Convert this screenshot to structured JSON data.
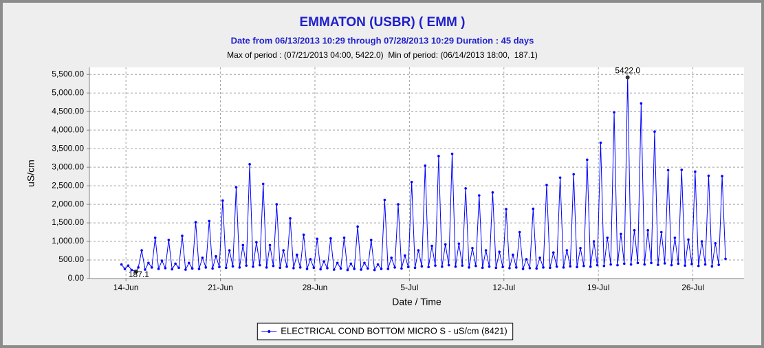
{
  "chart_data": {
    "type": "line",
    "title": "EMMATON (USBR) ( EMM )",
    "subtitle": "Date from 06/13/2013 10:29 through 07/28/2013 10:29 Duration : 45 days",
    "period_note": "Max of period : (07/21/2013 04:00, 5422.0)  Min of period: (06/14/2013 18:00,  187.1)",
    "xlabel": "Date / Time",
    "ylabel": "uS/cm",
    "xlim": [
      "06/11/2013 07:00",
      "07/29/2013 19:00"
    ],
    "ylim": [
      0,
      5690
    ],
    "xticks": [
      {
        "value": "06/14/2013 00:00",
        "label": "14-Jun"
      },
      {
        "value": "06/21/2013 00:00",
        "label": "21-Jun"
      },
      {
        "value": "06/28/2013 00:00",
        "label": "28-Jun"
      },
      {
        "value": "07/05/2013 00:00",
        "label": "5-Jul"
      },
      {
        "value": "07/12/2013 00:00",
        "label": "12-Jul"
      },
      {
        "value": "07/19/2013 00:00",
        "label": "19-Jul"
      },
      {
        "value": "07/26/2013 00:00",
        "label": "26-Jul"
      }
    ],
    "yticks": [
      {
        "value": 0,
        "label": "0.00"
      },
      {
        "value": 500,
        "label": "500.00"
      },
      {
        "value": 1000,
        "label": "1,000.00"
      },
      {
        "value": 1500,
        "label": "1,500.00"
      },
      {
        "value": 2000,
        "label": "2,000.00"
      },
      {
        "value": 2500,
        "label": "2,500.00"
      },
      {
        "value": 3000,
        "label": "3,000.00"
      },
      {
        "value": 3500,
        "label": "3,500.00"
      },
      {
        "value": 4000,
        "label": "4,000.00"
      },
      {
        "value": 4500,
        "label": "4,500.00"
      },
      {
        "value": 5000,
        "label": "5,000.00"
      },
      {
        "value": 5500,
        "label": "5,500.00"
      }
    ],
    "grid": true,
    "legend": "bottom",
    "annotations": [
      {
        "x": "07/21/2013 04:00",
        "value": 5422.0,
        "label": "5422.0"
      },
      {
        "x": "06/14/2013 18:00",
        "value": 187.1,
        "label": "187.1"
      }
    ],
    "series": [
      {
        "name": "ELECTRICAL COND BOTTOM MICRO S - uS/cm (8421)",
        "color": "#0000ff",
        "x": [
          "06/13/2013 16:00",
          "06/13/2013 22:00",
          "06/14/2013 04:00",
          "06/14/2013 10:00",
          "06/14/2013 16:00",
          "06/14/2013 18:00",
          "06/14/2013 22:00",
          "06/15/2013 04:00",
          "06/15/2013 10:00",
          "06/15/2013 16:00",
          "06/15/2013 22:00",
          "06/16/2013 04:00",
          "06/16/2013 10:00",
          "06/16/2013 16:00",
          "06/16/2013 22:00",
          "06/17/2013 04:00",
          "06/17/2013 10:00",
          "06/17/2013 16:00",
          "06/17/2013 22:00",
          "06/18/2013 04:00",
          "06/18/2013 10:00",
          "06/18/2013 16:00",
          "06/18/2013 22:00",
          "06/19/2013 04:00",
          "06/19/2013 10:00",
          "06/19/2013 16:00",
          "06/19/2013 22:00",
          "06/20/2013 04:00",
          "06/20/2013 10:00",
          "06/20/2013 16:00",
          "06/20/2013 22:00",
          "06/21/2013 04:00",
          "06/21/2013 10:00",
          "06/21/2013 16:00",
          "06/21/2013 22:00",
          "06/22/2013 04:00",
          "06/22/2013 10:00",
          "06/22/2013 16:00",
          "06/22/2013 22:00",
          "06/23/2013 04:00",
          "06/23/2013 10:00",
          "06/23/2013 16:00",
          "06/23/2013 22:00",
          "06/24/2013 04:00",
          "06/24/2013 10:00",
          "06/24/2013 16:00",
          "06/24/2013 22:00",
          "06/25/2013 04:00",
          "06/25/2013 10:00",
          "06/25/2013 16:00",
          "06/25/2013 22:00",
          "06/26/2013 04:00",
          "06/26/2013 10:00",
          "06/26/2013 16:00",
          "06/26/2013 22:00",
          "06/27/2013 04:00",
          "06/27/2013 10:00",
          "06/27/2013 16:00",
          "06/27/2013 22:00",
          "06/28/2013 04:00",
          "06/28/2013 10:00",
          "06/28/2013 16:00",
          "06/28/2013 22:00",
          "06/29/2013 04:00",
          "06/29/2013 10:00",
          "06/29/2013 16:00",
          "06/29/2013 22:00",
          "06/30/2013 04:00",
          "06/30/2013 10:00",
          "06/30/2013 16:00",
          "06/30/2013 22:00",
          "07/01/2013 04:00",
          "07/01/2013 10:00",
          "07/01/2013 16:00",
          "07/01/2013 22:00",
          "07/02/2013 04:00",
          "07/02/2013 10:00",
          "07/02/2013 16:00",
          "07/02/2013 22:00",
          "07/03/2013 04:00",
          "07/03/2013 10:00",
          "07/03/2013 16:00",
          "07/03/2013 22:00",
          "07/04/2013 04:00",
          "07/04/2013 10:00",
          "07/04/2013 16:00",
          "07/04/2013 22:00",
          "07/05/2013 04:00",
          "07/05/2013 10:00",
          "07/05/2013 16:00",
          "07/05/2013 22:00",
          "07/06/2013 04:00",
          "07/06/2013 10:00",
          "07/06/2013 16:00",
          "07/06/2013 22:00",
          "07/07/2013 04:00",
          "07/07/2013 10:00",
          "07/07/2013 16:00",
          "07/07/2013 22:00",
          "07/08/2013 04:00",
          "07/08/2013 10:00",
          "07/08/2013 16:00",
          "07/08/2013 22:00",
          "07/09/2013 04:00",
          "07/09/2013 10:00",
          "07/09/2013 16:00",
          "07/09/2013 22:00",
          "07/10/2013 04:00",
          "07/10/2013 10:00",
          "07/10/2013 16:00",
          "07/10/2013 22:00",
          "07/11/2013 04:00",
          "07/11/2013 10:00",
          "07/11/2013 16:00",
          "07/11/2013 22:00",
          "07/12/2013 04:00",
          "07/12/2013 10:00",
          "07/12/2013 16:00",
          "07/12/2013 22:00",
          "07/13/2013 04:00",
          "07/13/2013 10:00",
          "07/13/2013 16:00",
          "07/13/2013 22:00",
          "07/14/2013 04:00",
          "07/14/2013 10:00",
          "07/14/2013 16:00",
          "07/14/2013 22:00",
          "07/15/2013 04:00",
          "07/15/2013 10:00",
          "07/15/2013 16:00",
          "07/15/2013 22:00",
          "07/16/2013 04:00",
          "07/16/2013 10:00",
          "07/16/2013 16:00",
          "07/16/2013 22:00",
          "07/17/2013 04:00",
          "07/17/2013 10:00",
          "07/17/2013 16:00",
          "07/17/2013 22:00",
          "07/18/2013 04:00",
          "07/18/2013 10:00",
          "07/18/2013 16:00",
          "07/18/2013 22:00",
          "07/19/2013 04:00",
          "07/19/2013 10:00",
          "07/19/2013 16:00",
          "07/19/2013 22:00",
          "07/20/2013 04:00",
          "07/20/2013 10:00",
          "07/20/2013 16:00",
          "07/20/2013 22:00",
          "07/21/2013 04:00",
          "07/21/2013 10:00",
          "07/21/2013 16:00",
          "07/21/2013 22:00",
          "07/22/2013 04:00",
          "07/22/2013 10:00",
          "07/22/2013 16:00",
          "07/22/2013 22:00",
          "07/23/2013 04:00",
          "07/23/2013 10:00",
          "07/23/2013 16:00",
          "07/23/2013 22:00",
          "07/24/2013 04:00",
          "07/24/2013 10:00",
          "07/24/2013 16:00",
          "07/24/2013 22:00",
          "07/25/2013 04:00",
          "07/25/2013 10:00",
          "07/25/2013 16:00",
          "07/25/2013 22:00",
          "07/26/2013 04:00",
          "07/26/2013 10:00",
          "07/26/2013 16:00",
          "07/26/2013 22:00",
          "07/27/2013 04:00",
          "07/27/2013 10:00",
          "07/27/2013 16:00",
          "07/27/2013 22:00",
          "07/28/2013 04:00",
          "07/28/2013 10:00"
        ],
        "values": [
          380,
          260,
          350,
          230,
          200,
          187.1,
          300,
          760,
          240,
          420,
          300,
          1100,
          260,
          480,
          280,
          1040,
          250,
          400,
          290,
          1150,
          240,
          420,
          270,
          1520,
          260,
          560,
          300,
          1550,
          270,
          600,
          310,
          2100,
          290,
          760,
          330,
          2460,
          300,
          900,
          350,
          3080,
          320,
          980,
          360,
          2550,
          300,
          900,
          340,
          2000,
          290,
          760,
          320,
          1620,
          280,
          640,
          300,
          1180,
          260,
          520,
          290,
          1070,
          250,
          460,
          280,
          1080,
          240,
          420,
          270,
          1100,
          230,
          400,
          260,
          1400,
          240,
          420,
          270,
          1040,
          230,
          380,
          260,
          2120,
          260,
          560,
          300,
          2000,
          270,
          620,
          310,
          2600,
          290,
          760,
          330,
          3040,
          310,
          880,
          350,
          3300,
          320,
          920,
          360,
          3360,
          320,
          940,
          350,
          2430,
          300,
          820,
          340,
          2240,
          290,
          760,
          320,
          2320,
          290,
          720,
          310,
          1870,
          280,
          640,
          300,
          1250,
          260,
          520,
          280,
          1880,
          270,
          560,
          300,
          2520,
          290,
          700,
          320,
          2720,
          300,
          760,
          330,
          2810,
          310,
          820,
          340,
          3200,
          320,
          1000,
          360,
          3660,
          340,
          1100,
          380,
          4480,
          360,
          1200,
          400,
          5422,
          380,
          1300,
          420,
          4720,
          380,
          1300,
          420,
          3960,
          370,
          1250,
          410,
          2920,
          360,
          1100,
          400,
          2930,
          350,
          1050,
          390,
          2880,
          340,
          1000,
          380,
          2770,
          330,
          950,
          370,
          2760,
          530
        ]
      }
    ]
  }
}
